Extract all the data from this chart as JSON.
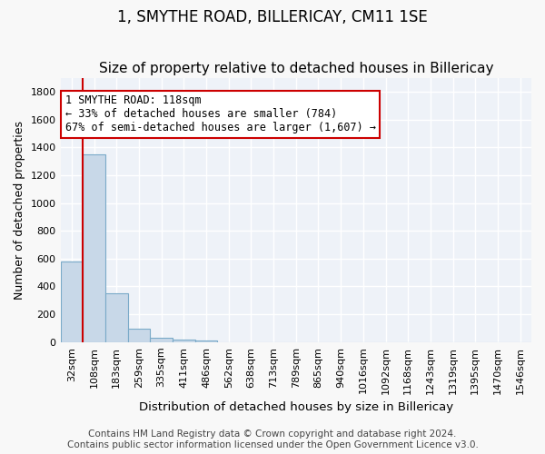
{
  "title": "1, SMYTHE ROAD, BILLERICAY, CM11 1SE",
  "subtitle": "Size of property relative to detached houses in Billericay",
  "xlabel": "Distribution of detached houses by size in Billericay",
  "ylabel": "Number of detached properties",
  "bin_labels": [
    "32sqm",
    "108sqm",
    "183sqm",
    "259sqm",
    "335sqm",
    "411sqm",
    "486sqm",
    "562sqm",
    "638sqm",
    "713sqm",
    "789sqm",
    "865sqm",
    "940sqm",
    "1016sqm",
    "1092sqm",
    "1168sqm",
    "1243sqm",
    "1319sqm",
    "1395sqm",
    "1470sqm",
    "1546sqm"
  ],
  "bar_values": [
    580,
    1350,
    350,
    95,
    30,
    20,
    15,
    0,
    0,
    0,
    0,
    0,
    0,
    0,
    0,
    0,
    0,
    0,
    0,
    0,
    0
  ],
  "bar_color": "#c8d8e8",
  "bar_edge_color": "#7aaac8",
  "property_line_x": 1,
  "ylim": [
    0,
    1900
  ],
  "yticks": [
    0,
    200,
    400,
    600,
    800,
    1000,
    1200,
    1400,
    1600,
    1800
  ],
  "annotation_text": "1 SMYTHE ROAD: 118sqm\n← 33% of detached houses are smaller (784)\n67% of semi-detached houses are larger (1,607) →",
  "annotation_box_color": "#ffffff",
  "annotation_box_edge": "#cc0000",
  "line_color": "#cc0000",
  "background_color": "#eef2f8",
  "grid_color": "#ffffff",
  "footer_text": "Contains HM Land Registry data © Crown copyright and database right 2024.\nContains public sector information licensed under the Open Government Licence v3.0.",
  "title_fontsize": 12,
  "subtitle_fontsize": 11,
  "xlabel_fontsize": 9.5,
  "ylabel_fontsize": 9,
  "tick_fontsize": 8,
  "annotation_fontsize": 8.5,
  "footer_fontsize": 7.5
}
